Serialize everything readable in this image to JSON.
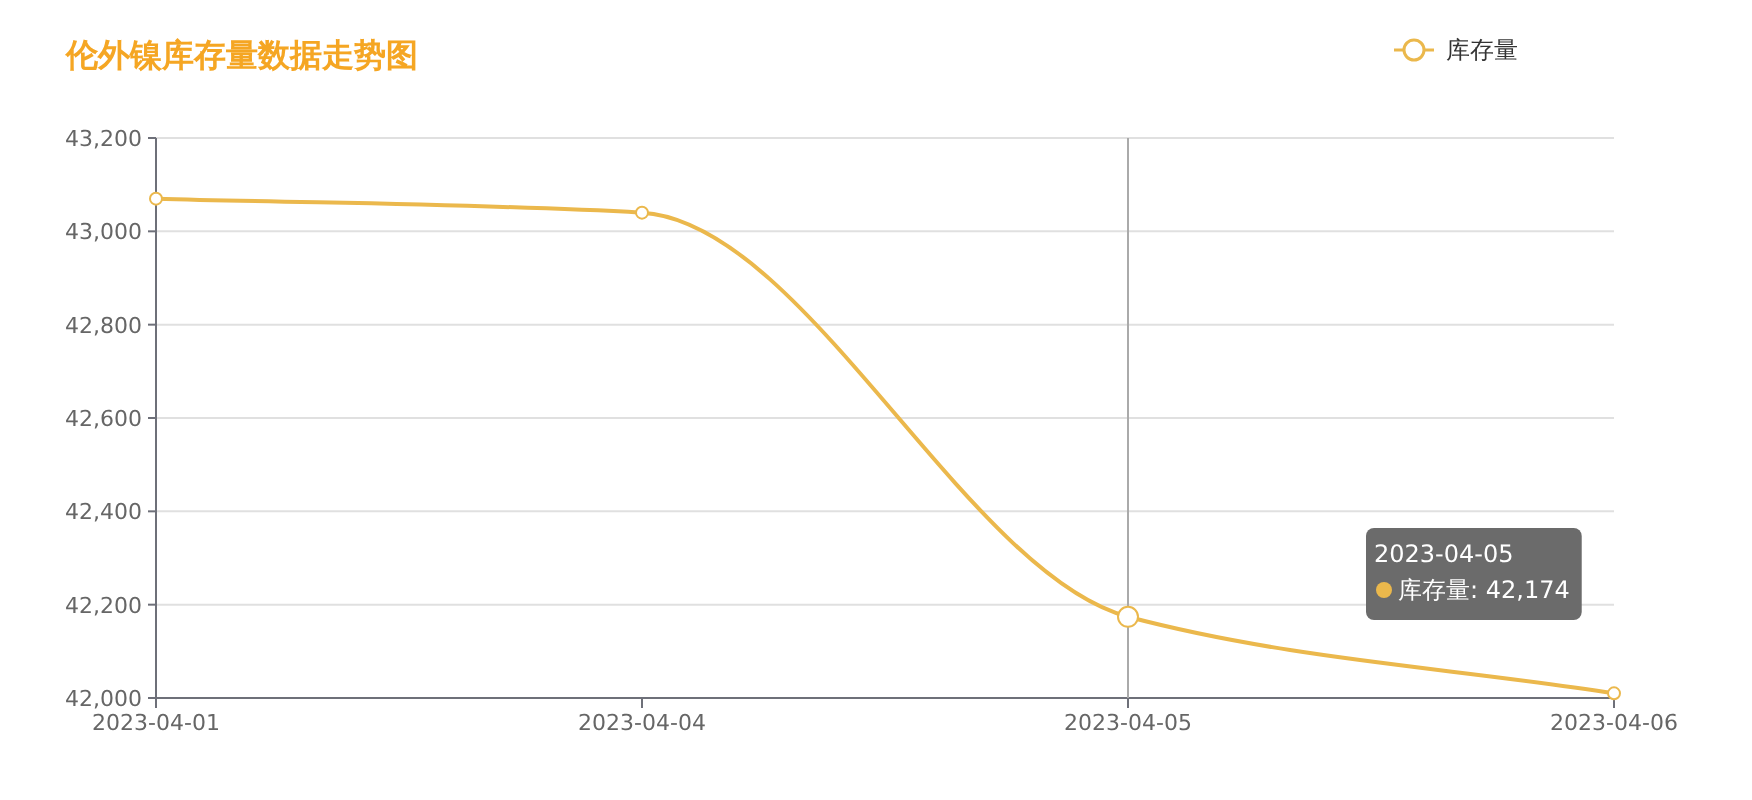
{
  "chart_data": {
    "type": "line",
    "title": "伦外镍库存量数据走势图",
    "categories": [
      "2023-04-01",
      "2023-04-04",
      "2023-04-05",
      "2023-04-06"
    ],
    "series": [
      {
        "name": "库存量",
        "color": "#ebb84c",
        "values": [
          43070,
          43040,
          42174,
          42010
        ]
      }
    ],
    "ylim": [
      42000,
      43200
    ],
    "yticks": [
      {
        "value": 42000,
        "label": "42,000"
      },
      {
        "value": 42200,
        "label": "42,200"
      },
      {
        "value": 42400,
        "label": "42,400"
      },
      {
        "value": 42600,
        "label": "42,600"
      },
      {
        "value": 42800,
        "label": "42,800"
      },
      {
        "value": 43000,
        "label": "43,000"
      },
      {
        "value": 43200,
        "label": "43,200"
      }
    ],
    "grid": "y",
    "legend": "top right",
    "marker": "circle",
    "ref_lines": [
      {
        "axis": "x",
        "value": "2023-04-05"
      }
    ],
    "annotations": [
      "2023-04-05",
      "库存量: 42,174"
    ]
  }
}
